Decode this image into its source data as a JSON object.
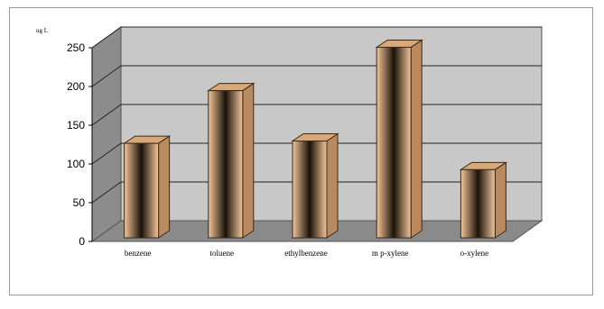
{
  "chart_data": {
    "type": "bar",
    "title": "",
    "xlabel": "",
    "ylabel": "",
    "unit_label": "ug L",
    "categories": [
      "benzene",
      "toluene",
      "ethylbenzene",
      "m p-xylene",
      "o-xylene"
    ],
    "values": [
      122,
      190,
      125,
      246,
      88
    ],
    "ylim": [
      0,
      250
    ],
    "yticks": [
      0,
      50,
      100,
      150,
      200,
      250
    ],
    "grid": true,
    "legend": "none",
    "colors": {
      "bar_light": "#f6c79a",
      "bar_dark": "#1a1208",
      "bar_side": "#b88a5e",
      "bar_top": "#d8a878",
      "wall": "#c8c8c8",
      "side_wall": "#8c8c8c",
      "floor": "#8a8a8a"
    }
  }
}
